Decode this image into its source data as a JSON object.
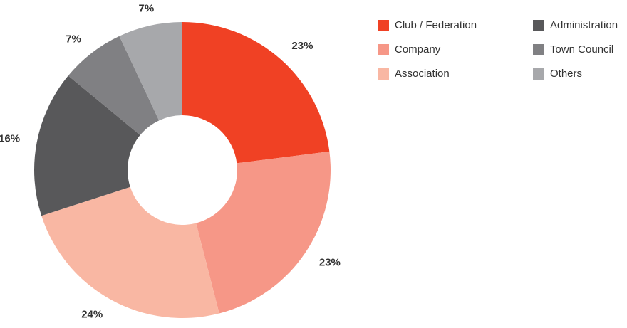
{
  "chart_data": {
    "type": "donut",
    "categories": [
      "Club / Federation",
      "Company",
      "Association",
      "Administration",
      "Town Council",
      "Others"
    ],
    "values": [
      23,
      23,
      24,
      16,
      7,
      7
    ],
    "value_labels": [
      "23%",
      "23%",
      "24%",
      "16%",
      "7%",
      "7%"
    ],
    "colors": [
      "#f04124",
      "#f69787",
      "#f9b7a3",
      "#58585a",
      "#808083",
      "#a7a8ab"
    ],
    "legend": "top-right"
  }
}
